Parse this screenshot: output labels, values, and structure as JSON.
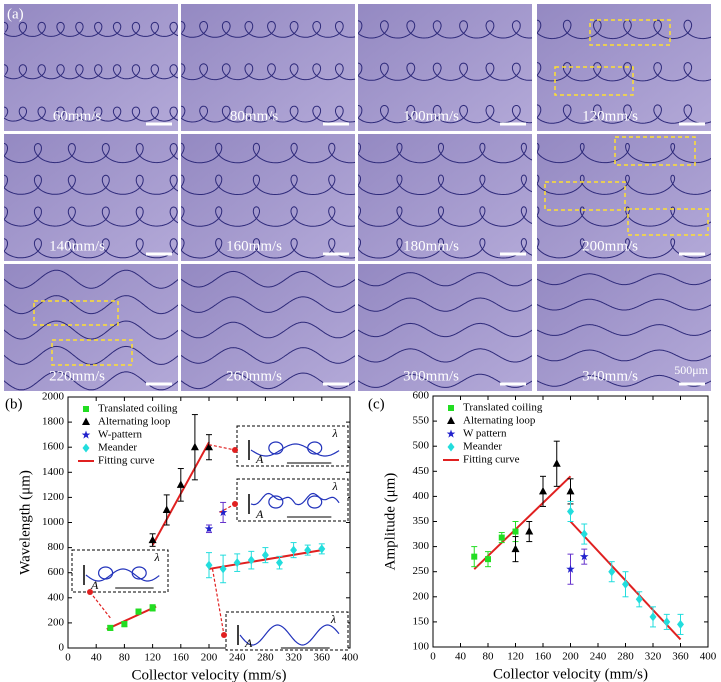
{
  "panel_a": {
    "label": "(a)",
    "scale_bar_label": "500μm",
    "tiles": [
      "60mm/s",
      "80mm/s",
      "100mm/s",
      "120mm/s",
      "140mm/s",
      "160mm/s",
      "180mm/s",
      "200mm/s",
      "220mm/s",
      "260mm/s",
      "300mm/s",
      "340mm/s"
    ]
  },
  "chart_data": [
    {
      "type": "scatter",
      "panel_label": "(b)",
      "x_label": "Collector velocity (mm/s)",
      "y_label": "Wavelength (μm)",
      "xlim": [
        0,
        400
      ],
      "xticks": [
        0,
        40,
        80,
        120,
        160,
        200,
        240,
        280,
        320,
        360,
        400
      ],
      "ylim": [
        0,
        2000
      ],
      "yticks": [
        0,
        200,
        400,
        600,
        800,
        1000,
        1200,
        1400,
        1600,
        1800,
        2000
      ],
      "series": [
        {
          "name": "Translated coiling",
          "color": "#22dd22",
          "marker": "square",
          "x": [
            60,
            80,
            100,
            120
          ],
          "values": [
            160,
            190,
            290,
            320
          ],
          "errors": [
            20,
            20,
            20,
            25
          ]
        },
        {
          "name": "Alternating loop",
          "color": "#000000",
          "marker": "triangle",
          "x": [
            120,
            140,
            160,
            180,
            200
          ],
          "values": [
            860,
            1100,
            1300,
            1600,
            1600
          ],
          "errors": [
            50,
            120,
            130,
            260,
            100
          ]
        },
        {
          "name": "W-pattern",
          "color": "#2222cc",
          "marker": "star",
          "x": [
            200,
            220
          ],
          "values": [
            950,
            1080
          ],
          "errors": [
            30,
            80
          ]
        },
        {
          "name": "Meander",
          "color": "#22dddd",
          "marker": "diamond",
          "x": [
            200,
            220,
            240,
            260,
            280,
            300,
            320,
            340,
            360
          ],
          "values": [
            660,
            630,
            680,
            700,
            740,
            680,
            780,
            780,
            790
          ],
          "errors": [
            100,
            110,
            70,
            70,
            60,
            50,
            60,
            40,
            40
          ]
        }
      ],
      "fit": {
        "name": "Fitting curve",
        "color": "#e02020",
        "segments": [
          {
            "x": [
              55,
              125
            ],
            "values": [
              150,
              330
            ]
          },
          {
            "x": [
              120,
              200
            ],
            "values": [
              820,
              1640
            ]
          },
          {
            "x": [
              200,
              360
            ],
            "values": [
              630,
              780
            ]
          }
        ]
      },
      "inset_symbols": [
        "A",
        "λ"
      ]
    },
    {
      "type": "scatter",
      "panel_label": "(c)",
      "x_label": "Collector velocity (mm/s)",
      "y_label": "Amplitude (μm)",
      "xlim": [
        0,
        400
      ],
      "xticks": [
        0,
        40,
        80,
        120,
        160,
        200,
        240,
        280,
        320,
        360,
        400
      ],
      "ylim": [
        100,
        600
      ],
      "yticks": [
        100,
        150,
        200,
        250,
        300,
        350,
        400,
        450,
        500,
        550,
        600
      ],
      "series": [
        {
          "name": "Translated coiling",
          "color": "#22dd22",
          "marker": "square",
          "x": [
            60,
            80,
            100,
            120
          ],
          "values": [
            280,
            275,
            318,
            330
          ],
          "errors": [
            20,
            15,
            10,
            20
          ]
        },
        {
          "name": "Alternating loop",
          "color": "#000000",
          "marker": "triangle",
          "x": [
            120,
            140,
            160,
            180,
            200
          ],
          "values": [
            295,
            330,
            410,
            465,
            410
          ],
          "errors": [
            25,
            20,
            30,
            45,
            25
          ]
        },
        {
          "name": "W pattern",
          "color": "#2222cc",
          "marker": "star",
          "x": [
            200,
            220
          ],
          "values": [
            255,
            280
          ],
          "errors": [
            30,
            15
          ]
        },
        {
          "name": "Meander",
          "color": "#22dddd",
          "marker": "diamond",
          "x": [
            200,
            220,
            260,
            280,
            300,
            320,
            340,
            360
          ],
          "values": [
            370,
            325,
            250,
            225,
            195,
            160,
            150,
            145
          ],
          "errors": [
            20,
            20,
            20,
            25,
            15,
            20,
            15,
            20
          ]
        }
      ],
      "fit": {
        "name": "Fitting curve",
        "color": "#e02020",
        "segments": [
          {
            "x": [
              60,
              200
            ],
            "values": [
              255,
              440
            ]
          },
          {
            "x": [
              200,
              360
            ],
            "values": [
              350,
              115
            ]
          }
        ]
      }
    }
  ]
}
